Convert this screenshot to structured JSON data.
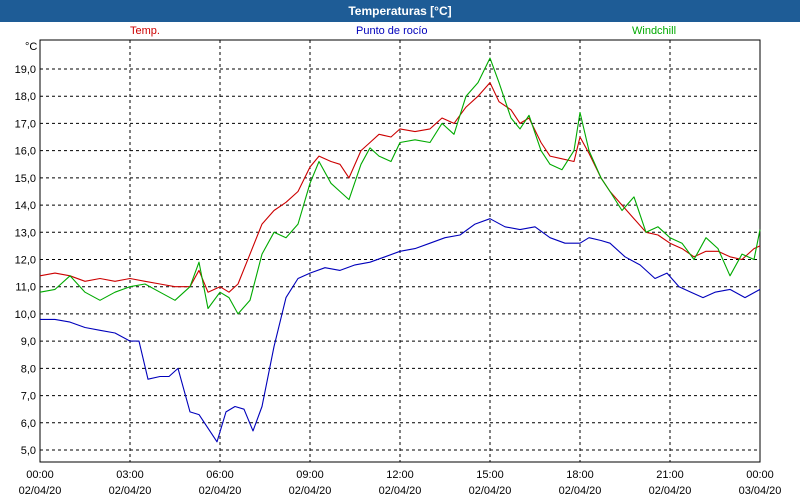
{
  "window": {
    "title": "Temperaturas [°C]"
  },
  "chart_data": {
    "type": "line",
    "title": "Temperaturas [°C]",
    "unit_label": "°C",
    "ylim": [
      5,
      20
    ],
    "y_ticks": [
      "5,0",
      "6,0",
      "7,0",
      "8,0",
      "9,0",
      "10,0",
      "11,0",
      "12,0",
      "13,0",
      "14,0",
      "15,0",
      "16,0",
      "17,0",
      "18,0",
      "19,0"
    ],
    "x_ticks": [
      {
        "time": "00:00",
        "date": "02/04/20"
      },
      {
        "time": "03:00",
        "date": "02/04/20"
      },
      {
        "time": "06:00",
        "date": "02/04/20"
      },
      {
        "time": "09:00",
        "date": "02/04/20"
      },
      {
        "time": "12:00",
        "date": "02/04/20"
      },
      {
        "time": "15:00",
        "date": "02/04/20"
      },
      {
        "time": "18:00",
        "date": "02/04/20"
      },
      {
        "time": "21:00",
        "date": "02/04/20"
      },
      {
        "time": "00:00",
        "date": "03/04/20"
      }
    ],
    "x_unit": "hours",
    "grid": true,
    "series": [
      {
        "name": "Temp.",
        "color": "#cc0000",
        "points": [
          [
            0,
            11.4
          ],
          [
            0.5,
            11.5
          ],
          [
            1,
            11.4
          ],
          [
            1.5,
            11.2
          ],
          [
            2,
            11.3
          ],
          [
            2.5,
            11.2
          ],
          [
            3,
            11.3
          ],
          [
            3.5,
            11.2
          ],
          [
            4,
            11.1
          ],
          [
            4.5,
            11.0
          ],
          [
            5,
            11.0
          ],
          [
            5.3,
            11.6
          ],
          [
            5.6,
            10.8
          ],
          [
            6,
            11.0
          ],
          [
            6.3,
            10.8
          ],
          [
            6.6,
            11.1
          ],
          [
            7,
            12.2
          ],
          [
            7.4,
            13.3
          ],
          [
            7.8,
            13.8
          ],
          [
            8.2,
            14.1
          ],
          [
            8.6,
            14.5
          ],
          [
            9,
            15.4
          ],
          [
            9.3,
            15.8
          ],
          [
            9.7,
            15.6
          ],
          [
            10,
            15.5
          ],
          [
            10.3,
            15.0
          ],
          [
            10.7,
            16.0
          ],
          [
            11,
            16.3
          ],
          [
            11.3,
            16.6
          ],
          [
            11.7,
            16.5
          ],
          [
            12,
            16.8
          ],
          [
            12.5,
            16.7
          ],
          [
            13,
            16.8
          ],
          [
            13.4,
            17.2
          ],
          [
            13.8,
            17.0
          ],
          [
            14.2,
            17.6
          ],
          [
            14.6,
            18.0
          ],
          [
            15,
            18.5
          ],
          [
            15.3,
            17.8
          ],
          [
            15.7,
            17.5
          ],
          [
            16,
            17.0
          ],
          [
            16.3,
            17.2
          ],
          [
            16.7,
            16.3
          ],
          [
            17,
            15.8
          ],
          [
            17.4,
            15.7
          ],
          [
            17.8,
            15.6
          ],
          [
            18,
            16.5
          ],
          [
            18.3,
            15.9
          ],
          [
            18.7,
            15.0
          ],
          [
            19,
            14.5
          ],
          [
            19.4,
            14.0
          ],
          [
            19.8,
            13.5
          ],
          [
            20.2,
            13.0
          ],
          [
            20.6,
            12.9
          ],
          [
            21,
            12.6
          ],
          [
            21.4,
            12.4
          ],
          [
            21.8,
            12.1
          ],
          [
            22.2,
            12.3
          ],
          [
            22.6,
            12.3
          ],
          [
            23,
            12.1
          ],
          [
            23.4,
            12.0
          ],
          [
            23.8,
            12.4
          ],
          [
            24,
            12.5
          ]
        ]
      },
      {
        "name": "Punto de rocío",
        "color": "#0000bb",
        "points": [
          [
            0,
            9.8
          ],
          [
            0.5,
            9.8
          ],
          [
            1,
            9.7
          ],
          [
            1.5,
            9.5
          ],
          [
            2,
            9.4
          ],
          [
            2.5,
            9.3
          ],
          [
            3,
            9.0
          ],
          [
            3.3,
            9.0
          ],
          [
            3.6,
            7.6
          ],
          [
            4,
            7.7
          ],
          [
            4.3,
            7.7
          ],
          [
            4.6,
            8.0
          ],
          [
            5,
            6.4
          ],
          [
            5.3,
            6.3
          ],
          [
            5.6,
            5.8
          ],
          [
            5.9,
            5.3
          ],
          [
            6.2,
            6.4
          ],
          [
            6.5,
            6.6
          ],
          [
            6.8,
            6.5
          ],
          [
            7.1,
            5.7
          ],
          [
            7.4,
            6.6
          ],
          [
            7.8,
            8.8
          ],
          [
            8.2,
            10.6
          ],
          [
            8.6,
            11.3
          ],
          [
            9,
            11.5
          ],
          [
            9.5,
            11.7
          ],
          [
            10,
            11.6
          ],
          [
            10.5,
            11.8
          ],
          [
            11,
            11.9
          ],
          [
            11.5,
            12.1
          ],
          [
            12,
            12.3
          ],
          [
            12.5,
            12.4
          ],
          [
            13,
            12.6
          ],
          [
            13.5,
            12.8
          ],
          [
            14,
            12.9
          ],
          [
            14.5,
            13.3
          ],
          [
            15,
            13.5
          ],
          [
            15.5,
            13.2
          ],
          [
            16,
            13.1
          ],
          [
            16.5,
            13.2
          ],
          [
            17,
            12.8
          ],
          [
            17.5,
            12.6
          ],
          [
            18,
            12.6
          ],
          [
            18.3,
            12.8
          ],
          [
            18.7,
            12.7
          ],
          [
            19,
            12.6
          ],
          [
            19.5,
            12.1
          ],
          [
            20,
            11.8
          ],
          [
            20.5,
            11.3
          ],
          [
            20.9,
            11.5
          ],
          [
            21.3,
            11.0
          ],
          [
            21.7,
            10.8
          ],
          [
            22.1,
            10.6
          ],
          [
            22.5,
            10.8
          ],
          [
            23,
            10.9
          ],
          [
            23.5,
            10.6
          ],
          [
            24,
            10.9
          ]
        ]
      },
      {
        "name": "Windchill",
        "color": "#00aa00",
        "points": [
          [
            0,
            10.8
          ],
          [
            0.5,
            10.9
          ],
          [
            1,
            11.4
          ],
          [
            1.5,
            10.8
          ],
          [
            2,
            10.5
          ],
          [
            2.5,
            10.8
          ],
          [
            3,
            11.0
          ],
          [
            3.5,
            11.1
          ],
          [
            4,
            10.8
          ],
          [
            4.5,
            10.5
          ],
          [
            5,
            11.0
          ],
          [
            5.3,
            11.9
          ],
          [
            5.6,
            10.2
          ],
          [
            6,
            10.8
          ],
          [
            6.3,
            10.6
          ],
          [
            6.6,
            10.0
          ],
          [
            7,
            10.5
          ],
          [
            7.4,
            12.2
          ],
          [
            7.8,
            13.0
          ],
          [
            8.2,
            12.8
          ],
          [
            8.6,
            13.3
          ],
          [
            9,
            14.8
          ],
          [
            9.3,
            15.6
          ],
          [
            9.7,
            14.8
          ],
          [
            10,
            14.5
          ],
          [
            10.3,
            14.2
          ],
          [
            10.7,
            15.5
          ],
          [
            11,
            16.1
          ],
          [
            11.3,
            15.8
          ],
          [
            11.7,
            15.6
          ],
          [
            12,
            16.3
          ],
          [
            12.5,
            16.4
          ],
          [
            13,
            16.3
          ],
          [
            13.4,
            17.0
          ],
          [
            13.8,
            16.6
          ],
          [
            14.2,
            18.0
          ],
          [
            14.6,
            18.5
          ],
          [
            15,
            19.4
          ],
          [
            15.3,
            18.5
          ],
          [
            15.7,
            17.2
          ],
          [
            16,
            16.8
          ],
          [
            16.3,
            17.3
          ],
          [
            16.7,
            16.0
          ],
          [
            17,
            15.5
          ],
          [
            17.4,
            15.3
          ],
          [
            17.8,
            16.0
          ],
          [
            18,
            17.4
          ],
          [
            18.3,
            16.0
          ],
          [
            18.7,
            15.0
          ],
          [
            19,
            14.5
          ],
          [
            19.4,
            13.8
          ],
          [
            19.8,
            14.3
          ],
          [
            20.2,
            13.0
          ],
          [
            20.6,
            13.2
          ],
          [
            21,
            12.8
          ],
          [
            21.4,
            12.6
          ],
          [
            21.8,
            12.0
          ],
          [
            22.2,
            12.8
          ],
          [
            22.6,
            12.4
          ],
          [
            23,
            11.4
          ],
          [
            23.4,
            12.2
          ],
          [
            23.8,
            12.0
          ],
          [
            24,
            13.1
          ]
        ]
      }
    ]
  }
}
